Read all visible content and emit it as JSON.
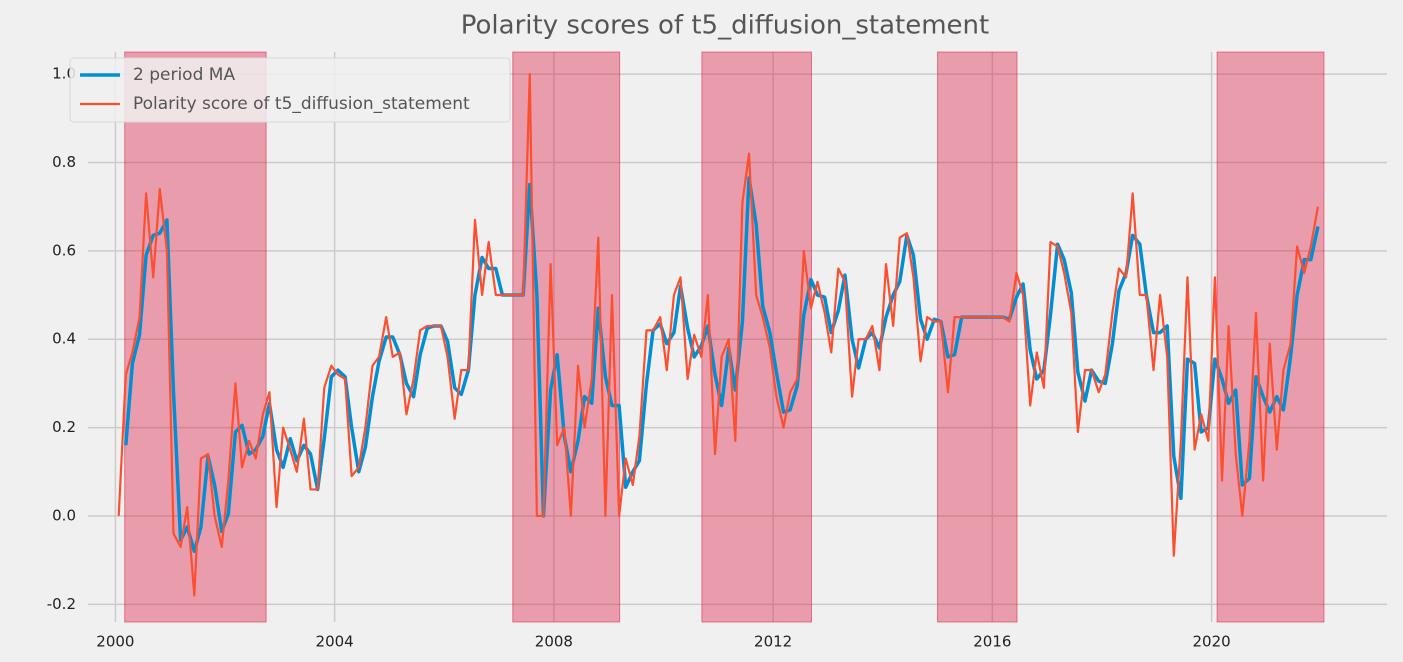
{
  "chart_data": {
    "type": "line",
    "title": "Polarity scores of t5_diffusion_statement",
    "x": [
      2000.06,
      2000.19,
      2000.31,
      2000.44,
      2000.56,
      2000.69,
      2000.81,
      2000.94,
      2001.06,
      2001.19,
      2001.31,
      2001.44,
      2001.56,
      2001.69,
      2001.81,
      2001.94,
      2002.06,
      2002.19,
      2002.31,
      2002.44,
      2002.56,
      2002.69,
      2002.81,
      2002.94,
      2003.06,
      2003.19,
      2003.31,
      2003.44,
      2003.56,
      2003.69,
      2003.81,
      2003.94,
      2004.06,
      2004.19,
      2004.31,
      2004.44,
      2004.56,
      2004.69,
      2004.81,
      2004.94,
      2005.06,
      2005.19,
      2005.31,
      2005.44,
      2005.56,
      2005.69,
      2005.81,
      2005.94,
      2006.06,
      2006.19,
      2006.31,
      2006.44,
      2006.56,
      2006.69,
      2006.81,
      2006.94,
      2007.06,
      2007.19,
      2007.31,
      2007.44,
      2007.56,
      2007.69,
      2007.81,
      2007.94,
      2008.06,
      2008.19,
      2008.31,
      2008.44,
      2008.56,
      2008.69,
      2008.81,
      2008.94,
      2009.06,
      2009.19,
      2009.31,
      2009.44,
      2009.56,
      2009.69,
      2009.81,
      2009.94,
      2010.06,
      2010.19,
      2010.31,
      2010.44,
      2010.56,
      2010.69,
      2010.81,
      2010.94,
      2011.06,
      2011.19,
      2011.31,
      2011.44,
      2011.56,
      2011.69,
      2011.81,
      2011.94,
      2012.06,
      2012.19,
      2012.31,
      2012.44,
      2012.56,
      2012.69,
      2012.81,
      2012.94,
      2013.06,
      2013.19,
      2013.31,
      2013.44,
      2013.56,
      2013.69,
      2013.81,
      2013.94,
      2014.06,
      2014.19,
      2014.31,
      2014.44,
      2014.56,
      2014.69,
      2014.81,
      2014.94,
      2015.06,
      2015.19,
      2015.31,
      2015.44,
      2015.56,
      2015.69,
      2015.81,
      2015.94,
      2016.06,
      2016.19,
      2016.31,
      2016.44,
      2016.56,
      2016.69,
      2016.81,
      2016.94,
      2017.06,
      2017.19,
      2017.31,
      2017.44,
      2017.56,
      2017.69,
      2017.81,
      2017.94,
      2018.06,
      2018.19,
      2018.31,
      2018.44,
      2018.56,
      2018.69,
      2018.81,
      2018.94,
      2019.06,
      2019.19,
      2019.31,
      2019.44,
      2019.56,
      2019.69,
      2019.81,
      2019.94,
      2020.06,
      2020.19,
      2020.31,
      2020.44,
      2020.56,
      2020.69,
      2020.81,
      2020.94,
      2021.06,
      2021.19,
      2021.31,
      2021.44,
      2021.56,
      2021.69,
      2021.81,
      2021.94
    ],
    "series": [
      {
        "name": "2 period MA",
        "color": "#008fd5",
        "width": 3.5,
        "values": [
          null,
          0.16,
          0.345,
          0.41,
          0.59,
          0.635,
          0.64,
          0.67,
          0.28,
          -0.055,
          -0.025,
          -0.08,
          -0.025,
          0.135,
          0.07,
          -0.035,
          0.005,
          0.19,
          0.205,
          0.14,
          0.15,
          0.18,
          0.255,
          0.15,
          0.11,
          0.175,
          0.125,
          0.16,
          0.14,
          0.06,
          0.175,
          0.315,
          0.33,
          0.315,
          0.2,
          0.1,
          0.155,
          0.27,
          0.35,
          0.405,
          0.405,
          0.365,
          0.3,
          0.27,
          0.365,
          0.425,
          0.43,
          0.43,
          0.395,
          0.29,
          0.275,
          0.33,
          0.5,
          0.585,
          0.56,
          0.56,
          0.5,
          0.5,
          0.5,
          0.5,
          0.75,
          0.5,
          0.0,
          0.285,
          0.365,
          0.18,
          0.1,
          0.17,
          0.27,
          0.255,
          0.47,
          0.315,
          0.25,
          0.25,
          0.065,
          0.1,
          0.125,
          0.3,
          0.42,
          0.435,
          0.39,
          0.415,
          0.52,
          0.425,
          0.36,
          0.385,
          0.43,
          0.32,
          0.25,
          0.38,
          0.285,
          0.44,
          0.765,
          0.66,
          0.475,
          0.415,
          0.325,
          0.235,
          0.24,
          0.295,
          0.455,
          0.535,
          0.5,
          0.495,
          0.415,
          0.465,
          0.545,
          0.4,
          0.335,
          0.4,
          0.415,
          0.38,
          0.45,
          0.5,
          0.53,
          0.635,
          0.59,
          0.445,
          0.4,
          0.445,
          0.44,
          0.36,
          0.365,
          0.45,
          0.45,
          0.45,
          0.45,
          0.45,
          0.45,
          0.45,
          0.445,
          0.495,
          0.525,
          0.375,
          0.31,
          0.33,
          0.455,
          0.615,
          0.58,
          0.505,
          0.325,
          0.26,
          0.33,
          0.305,
          0.3,
          0.39,
          0.51,
          0.55,
          0.635,
          0.615,
          0.5,
          0.415,
          0.415,
          0.43,
          0.135,
          0.04,
          0.355,
          0.345,
          0.19,
          0.2,
          0.355,
          0.31,
          0.255,
          0.285,
          0.07,
          0.085,
          0.315,
          0.27,
          0.235,
          0.27,
          0.24,
          0.36,
          0.5,
          0.58,
          0.58,
          0.655
        ]
      },
      {
        "name": "Polarity score of t5_diffusion_statement",
        "color": "#fc4f30",
        "width": 2.2,
        "values": [
          0.0,
          0.32,
          0.37,
          0.45,
          0.73,
          0.54,
          0.74,
          0.6,
          -0.04,
          -0.07,
          0.02,
          -0.18,
          0.13,
          0.14,
          0.0,
          -0.07,
          0.08,
          0.3,
          0.11,
          0.17,
          0.13,
          0.23,
          0.28,
          0.02,
          0.2,
          0.15,
          0.1,
          0.22,
          0.06,
          0.06,
          0.29,
          0.34,
          0.32,
          0.31,
          0.09,
          0.11,
          0.2,
          0.34,
          0.36,
          0.45,
          0.36,
          0.37,
          0.23,
          0.31,
          0.42,
          0.43,
          0.43,
          0.43,
          0.36,
          0.22,
          0.33,
          0.33,
          0.67,
          0.5,
          0.62,
          0.5,
          0.5,
          0.5,
          0.5,
          0.5,
          1.0,
          0.0,
          0.0,
          0.57,
          0.16,
          0.2,
          0.0,
          0.34,
          0.2,
          0.31,
          0.63,
          0.0,
          0.5,
          0.0,
          0.13,
          0.07,
          0.18,
          0.42,
          0.42,
          0.45,
          0.33,
          0.5,
          0.54,
          0.31,
          0.41,
          0.36,
          0.5,
          0.14,
          0.36,
          0.4,
          0.17,
          0.71,
          0.82,
          0.5,
          0.45,
          0.38,
          0.27,
          0.2,
          0.28,
          0.31,
          0.6,
          0.47,
          0.53,
          0.46,
          0.37,
          0.56,
          0.53,
          0.27,
          0.4,
          0.4,
          0.43,
          0.33,
          0.57,
          0.43,
          0.63,
          0.64,
          0.54,
          0.35,
          0.45,
          0.44,
          0.44,
          0.28,
          0.45,
          0.45,
          0.45,
          0.45,
          0.45,
          0.45,
          0.45,
          0.45,
          0.44,
          0.55,
          0.5,
          0.25,
          0.37,
          0.29,
          0.62,
          0.61,
          0.55,
          0.46,
          0.19,
          0.33,
          0.33,
          0.28,
          0.32,
          0.46,
          0.56,
          0.54,
          0.73,
          0.5,
          0.5,
          0.33,
          0.5,
          0.36,
          -0.09,
          0.17,
          0.54,
          0.15,
          0.23,
          0.17,
          0.54,
          0.08,
          0.43,
          0.14,
          0.0,
          0.17,
          0.46,
          0.08,
          0.39,
          0.15,
          0.33,
          0.39,
          0.61,
          0.55,
          0.61,
          0.7
        ]
      }
    ],
    "shaded_regions": [
      [
        2000.17,
        2002.75
      ],
      [
        2007.25,
        2009.2
      ],
      [
        2010.7,
        2012.7
      ],
      [
        2015.0,
        2016.45
      ],
      [
        2020.1,
        2022.05
      ]
    ],
    "shaded_color": "#dc143c",
    "xlim": [
      1999.5,
      2023.2
    ],
    "xticks": [
      2000,
      2004,
      2008,
      2012,
      2016,
      2020
    ],
    "ylim": [
      -0.24,
      1.05
    ],
    "yticks": [
      -0.2,
      {
        "value": 0,
        "label": "0.0"
      },
      0.2,
      0.4,
      0.6,
      0.8,
      {
        "value": 1,
        "label": "1.0"
      }
    ],
    "grid": true,
    "legend": "upper left"
  }
}
